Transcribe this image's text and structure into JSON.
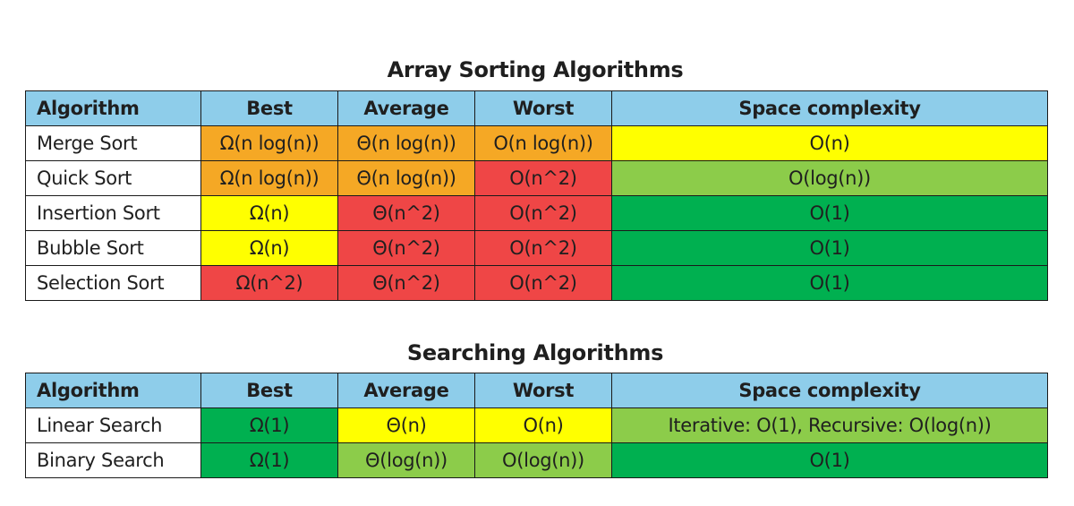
{
  "colors": {
    "header": "#8ecdea",
    "orange": "#f5a825",
    "yellow": "#ffff00",
    "red": "#ef4646",
    "light_green": "#8ccc4a",
    "dark_green": "#00b050"
  },
  "sorting": {
    "title": "Array Sorting Algorithms",
    "headers": [
      "Algorithm",
      "Best",
      "Average",
      "Worst",
      "Space complexity"
    ],
    "rows": [
      {
        "name": "Merge Sort",
        "cells": [
          {
            "text": "Ω(n log(n))",
            "color": "orange"
          },
          {
            "text": "Θ(n log(n))",
            "color": "orange"
          },
          {
            "text": "O(n log(n))",
            "color": "orange"
          },
          {
            "text": "O(n)",
            "color": "yellow"
          }
        ]
      },
      {
        "name": "Quick Sort",
        "cells": [
          {
            "text": "Ω(n log(n))",
            "color": "orange"
          },
          {
            "text": "Θ(n log(n))",
            "color": "orange"
          },
          {
            "text": "O(n^2)",
            "color": "red"
          },
          {
            "text": "O(log(n))",
            "color": "light_green"
          }
        ]
      },
      {
        "name": "Insertion Sort",
        "cells": [
          {
            "text": "Ω(n)",
            "color": "yellow"
          },
          {
            "text": "Θ(n^2)",
            "color": "red"
          },
          {
            "text": "O(n^2)",
            "color": "red"
          },
          {
            "text": "O(1)",
            "color": "dark_green"
          }
        ]
      },
      {
        "name": "Bubble Sort",
        "cells": [
          {
            "text": "Ω(n)",
            "color": "yellow"
          },
          {
            "text": "Θ(n^2)",
            "color": "red"
          },
          {
            "text": "O(n^2)",
            "color": "red"
          },
          {
            "text": "O(1)",
            "color": "dark_green"
          }
        ]
      },
      {
        "name": "Selection Sort",
        "cells": [
          {
            "text": "Ω(n^2)",
            "color": "red"
          },
          {
            "text": "Θ(n^2)",
            "color": "red"
          },
          {
            "text": "O(n^2)",
            "color": "red"
          },
          {
            "text": "O(1)",
            "color": "dark_green"
          }
        ]
      }
    ]
  },
  "searching": {
    "title": "Searching Algorithms",
    "headers": [
      "Algorithm",
      "Best",
      "Average",
      "Worst",
      "Space complexity"
    ],
    "rows": [
      {
        "name": "Linear Search",
        "cells": [
          {
            "text": "Ω(1)",
            "color": "dark_green"
          },
          {
            "text": "Θ(n)",
            "color": "yellow"
          },
          {
            "text": "O(n)",
            "color": "yellow"
          },
          {
            "text": "Iterative: O(1), Recursive: O(log(n))",
            "color": "light_green"
          }
        ]
      },
      {
        "name": "Binary Search",
        "cells": [
          {
            "text": "Ω(1)",
            "color": "dark_green"
          },
          {
            "text": "Θ(log(n))",
            "color": "light_green"
          },
          {
            "text": "O(log(n))",
            "color": "light_green"
          },
          {
            "text": "O(1)",
            "color": "dark_green"
          }
        ]
      }
    ]
  }
}
